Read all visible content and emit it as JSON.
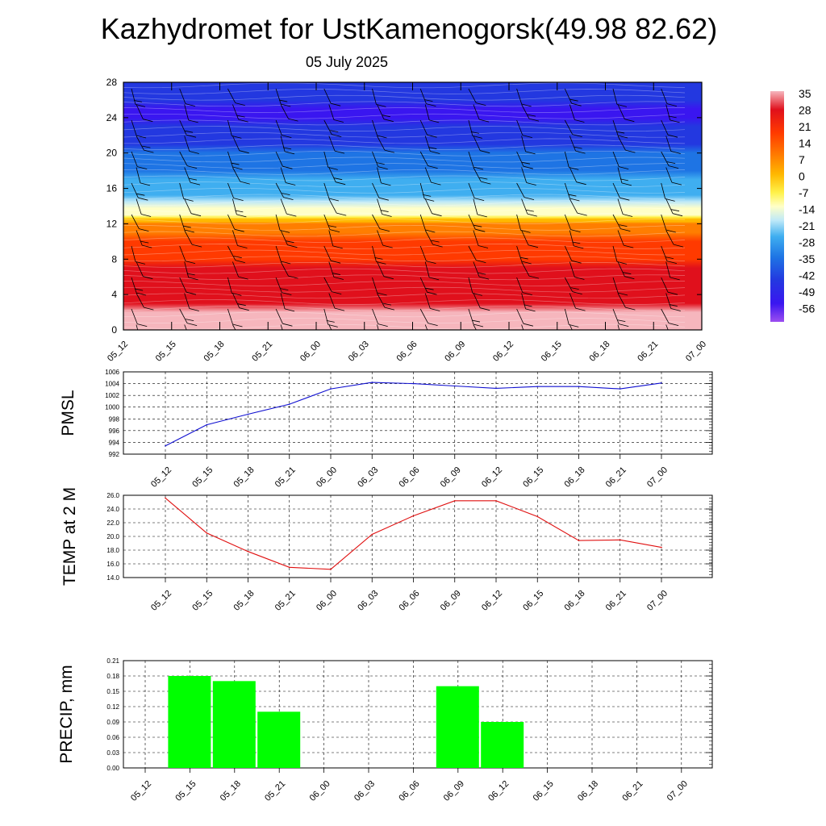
{
  "header": {
    "title": "Kazhydromet for UstKamenogorsk(49.98 82.62)",
    "date": "05 July 2025"
  },
  "colorbar": {
    "labels": [
      "35",
      "28",
      "21",
      "14",
      "7",
      "0",
      "-7",
      "-14",
      "-21",
      "-28",
      "-35",
      "-42",
      "-49",
      "-56"
    ],
    "stops": [
      {
        "v": 38,
        "c": "#f6b6bd"
      },
      {
        "v": 30,
        "c": "#e0101c"
      },
      {
        "v": 20,
        "c": "#ff3a00"
      },
      {
        "v": 10,
        "c": "#ff7e00"
      },
      {
        "v": 2,
        "c": "#ffb800"
      },
      {
        "v": -6,
        "c": "#fff24a"
      },
      {
        "v": -12,
        "c": "#ffffc8"
      },
      {
        "v": -18,
        "c": "#bfe9f8"
      },
      {
        "v": -25,
        "c": "#3faef0"
      },
      {
        "v": -34,
        "c": "#1e74e4"
      },
      {
        "v": -44,
        "c": "#2338e0"
      },
      {
        "v": -54,
        "c": "#3a16f0"
      },
      {
        "v": -62,
        "c": "#9c4ef0"
      }
    ]
  },
  "time_labels": [
    "05_12",
    "05_15",
    "05_18",
    "05_21",
    "06_00",
    "06_03",
    "06_06",
    "06_09",
    "06_12",
    "06_15",
    "06_18",
    "06_21",
    "07_00"
  ],
  "chart_data": [
    {
      "type": "heatmap",
      "title": "Kazhydromet for UstKamenogorsk(49.98 82.62)",
      "subtitle": "05 July 2025",
      "x": [
        "05_12",
        "05_15",
        "05_18",
        "05_21",
        "06_00",
        "06_03",
        "06_06",
        "06_09",
        "06_12",
        "06_15",
        "06_18",
        "06_21",
        "07_00"
      ],
      "y_ticks": [
        0,
        4,
        8,
        12,
        16,
        20,
        24,
        28
      ],
      "ylim": [
        0,
        28
      ],
      "profile": {
        "heights": [
          0,
          4,
          8,
          12,
          13,
          16,
          20,
          24,
          28
        ],
        "temps": [
          33,
          27,
          18,
          6,
          -14,
          -30,
          -42,
          -57,
          -48
        ]
      },
      "colorbar_range": [
        -56,
        35
      ],
      "wind_barbs": true
    },
    {
      "type": "line",
      "ylabel": "PMSL",
      "x": [
        "05_12",
        "05_15",
        "05_18",
        "05_21",
        "06_00",
        "06_03",
        "06_06",
        "06_09",
        "06_12",
        "06_15",
        "06_18",
        "06_21",
        "07_00"
      ],
      "ylim": [
        992,
        1006
      ],
      "y_ticks": [
        992,
        994,
        996,
        998,
        1000,
        1002,
        1004,
        1006
      ],
      "series": [
        {
          "values": [
            993.4,
            997.0,
            998.8,
            1000.5,
            1003.1,
            1004.2,
            1004.0,
            1003.6,
            1003.2,
            1003.5,
            1003.5,
            1003.1,
            1004.1
          ],
          "color": "#1010d0"
        }
      ],
      "grid": true
    },
    {
      "type": "line",
      "ylabel": "TEMP at 2 M",
      "x": [
        "05_12",
        "05_15",
        "05_18",
        "05_21",
        "06_00",
        "06_03",
        "06_06",
        "06_09",
        "06_12",
        "06_15",
        "06_18",
        "06_21",
        "07_00"
      ],
      "ylim": [
        14.0,
        26.0
      ],
      "y_ticks": [
        "14.0",
        "16.0",
        "18.0",
        "20.0",
        "22.0",
        "24.0",
        "26.0"
      ],
      "series": [
        {
          "values": [
            25.6,
            20.5,
            17.8,
            15.5,
            15.2,
            20.3,
            23.0,
            25.2,
            25.2,
            22.9,
            19.4,
            19.5,
            18.4
          ],
          "color": "#e01010"
        }
      ],
      "grid": true
    },
    {
      "type": "bar",
      "ylabel": "PRECIP, mm",
      "categories": [
        "05_12",
        "05_15",
        "05_18",
        "05_21",
        "06_00",
        "06_03",
        "06_06",
        "06_09",
        "06_12",
        "06_15",
        "06_18",
        "06_21",
        "07_00"
      ],
      "values": [
        0,
        0.18,
        0.17,
        0.11,
        0,
        0,
        0,
        0.16,
        0.09,
        0,
        0,
        0,
        0
      ],
      "ylim": [
        0,
        0.21
      ],
      "y_ticks": [
        "0.00",
        "0.03",
        "0.06",
        "0.09",
        "0.12",
        "0.15",
        "0.18",
        "0.21"
      ],
      "color": "#00ff00",
      "grid": true
    }
  ]
}
